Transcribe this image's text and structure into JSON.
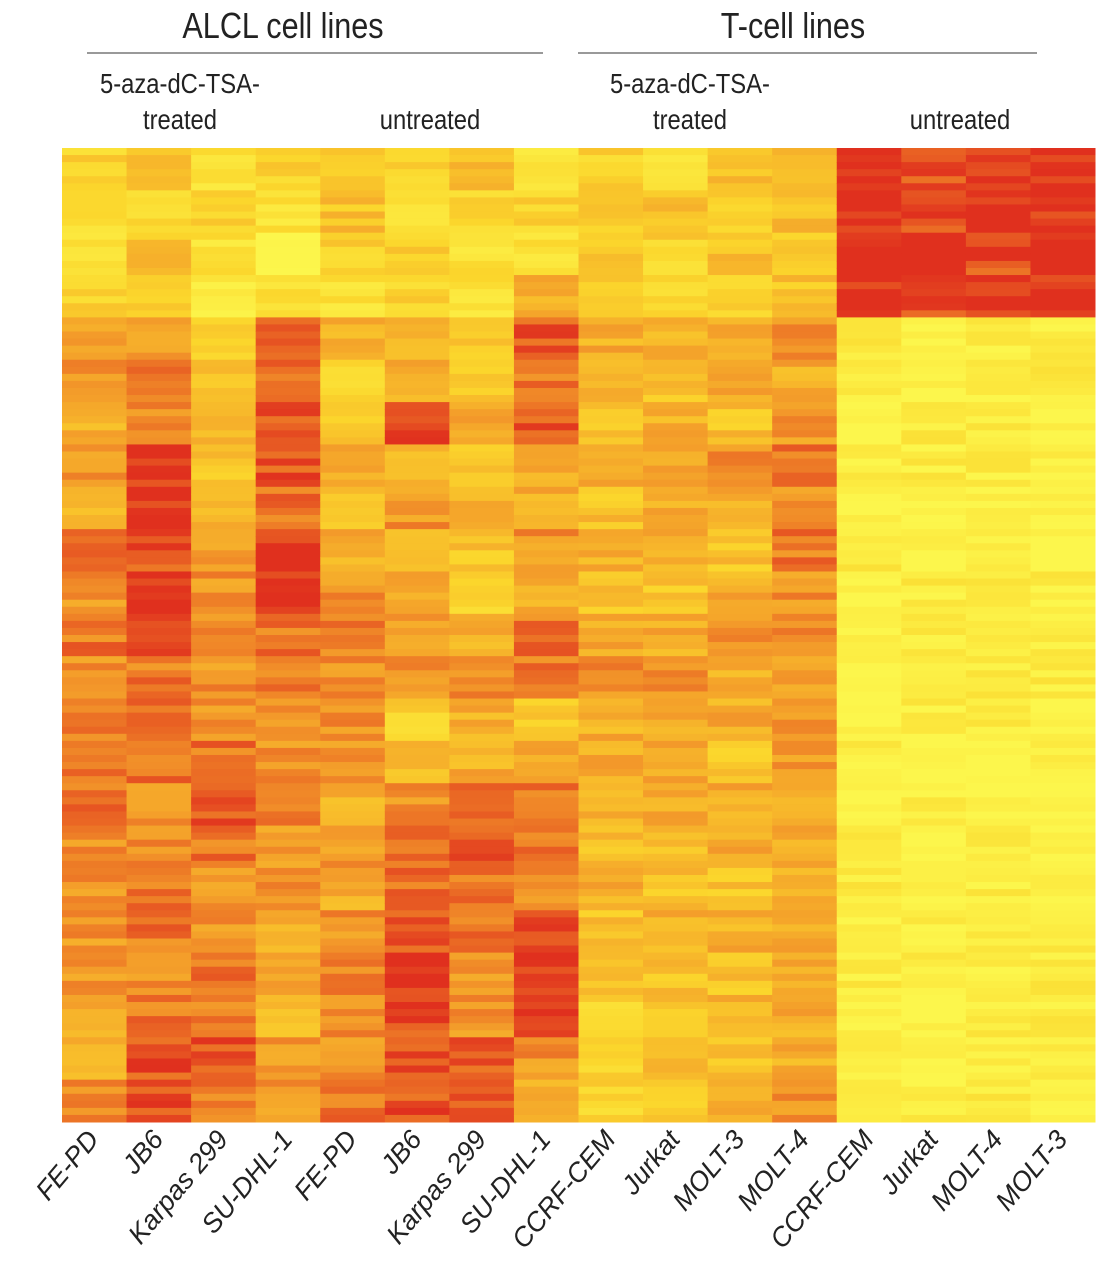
{
  "chart_data": {
    "type": "heatmap",
    "title": "",
    "groups": [
      {
        "label": "ALCL cell lines",
        "subgroups": [
          {
            "label_line1": "5-aza-dC-TSA-",
            "label_line2": "treated",
            "span": [
              0,
              3
            ]
          },
          {
            "label_line1": "",
            "label_line2": "untreated",
            "span": [
              4,
              7
            ]
          }
        ]
      },
      {
        "label": "T-cell lines",
        "subgroups": [
          {
            "label_line1": "5-aza-dC-TSA-",
            "label_line2": "treated",
            "span": [
              8,
              11
            ]
          },
          {
            "label_line1": "",
            "label_line2": "untreated",
            "span": [
              12,
              15
            ]
          }
        ]
      }
    ],
    "columns": [
      "FE-PD",
      "JB6",
      "Karpas 299",
      "SU-DHL-1",
      "FE-PD",
      "JB6",
      "Karpas 299",
      "SU-DHL-1",
      "CCRF-CEM",
      "Jurkat",
      "MOLT-3",
      "MOLT-4",
      "CCRF-CEM",
      "Jurkat",
      "MOLT-4",
      "MOLT-3"
    ],
    "value_scale": [
      0,
      9
    ],
    "color_scale": {
      "low": "#fcf64c",
      "mid_low": "#fbd62c",
      "mid_high": "#f39a2a",
      "high": "#e0301e"
    },
    "values": [
      [
        3,
        4,
        2,
        3,
        3,
        3,
        4,
        2,
        3,
        2,
        4,
        4,
        9,
        8,
        9,
        9
      ],
      [
        2,
        3,
        3,
        2,
        4,
        2,
        3,
        3,
        3,
        4,
        3,
        4,
        9,
        8,
        9,
        9
      ],
      [
        2,
        4,
        2,
        1,
        3,
        3,
        2,
        2,
        4,
        3,
        4,
        3,
        9,
        9,
        8,
        9
      ],
      [
        3,
        3,
        1,
        2,
        2,
        3,
        2,
        5,
        3,
        3,
        3,
        4,
        9,
        8,
        9,
        9
      ],
      [
        6,
        6,
        3,
        7,
        5,
        5,
        4,
        8,
        5,
        5,
        5,
        6,
        1,
        0,
        1,
        1
      ],
      [
        6,
        7,
        4,
        7,
        3,
        5,
        4,
        7,
        5,
        4,
        5,
        5,
        1,
        0,
        1,
        1
      ],
      [
        5,
        6,
        5,
        8,
        4,
        8,
        5,
        8,
        4,
        5,
        4,
        6,
        0,
        1,
        1,
        0
      ],
      [
        6,
        9,
        4,
        8,
        5,
        5,
        4,
        5,
        5,
        5,
        6,
        7,
        1,
        1,
        1,
        1
      ],
      [
        5,
        9,
        5,
        7,
        4,
        6,
        5,
        5,
        4,
        5,
        5,
        6,
        0,
        0,
        1,
        1
      ],
      [
        7,
        8,
        6,
        9,
        5,
        4,
        4,
        6,
        5,
        5,
        4,
        7,
        1,
        0,
        1,
        0
      ],
      [
        6,
        9,
        6,
        9,
        6,
        5,
        3,
        5,
        4,
        4,
        5,
        6,
        0,
        1,
        1,
        1
      ],
      [
        7,
        8,
        6,
        7,
        7,
        6,
        5,
        7,
        5,
        5,
        6,
        6,
        1,
        1,
        1,
        1
      ],
      [
        6,
        7,
        6,
        7,
        6,
        6,
        6,
        7,
        6,
        6,
        5,
        6,
        0,
        1,
        1,
        1
      ],
      [
        7,
        7,
        6,
        6,
        6,
        3,
        5,
        4,
        5,
        5,
        5,
        6,
        0,
        1,
        1,
        0
      ],
      [
        7,
        7,
        7,
        6,
        6,
        4,
        5,
        5,
        5,
        5,
        4,
        6,
        1,
        0,
        0,
        1
      ],
      [
        7,
        6,
        8,
        7,
        5,
        6,
        7,
        7,
        5,
        5,
        5,
        5,
        0,
        1,
        0,
        0
      ],
      [
        6,
        6,
        7,
        6,
        6,
        7,
        8,
        7,
        4,
        4,
        5,
        5,
        1,
        0,
        1,
        0
      ],
      [
        6,
        7,
        6,
        6,
        5,
        7,
        7,
        6,
        5,
        4,
        4,
        5,
        1,
        0,
        1,
        0
      ],
      [
        6,
        7,
        6,
        5,
        6,
        8,
        7,
        8,
        4,
        5,
        5,
        5,
        1,
        1,
        1,
        1
      ],
      [
        6,
        6,
        7,
        5,
        7,
        9,
        6,
        8,
        4,
        4,
        4,
        5,
        1,
        1,
        1,
        1
      ],
      [
        5,
        7,
        7,
        4,
        6,
        8,
        6,
        8,
        3,
        4,
        5,
        5,
        1,
        0,
        1,
        1
      ],
      [
        5,
        8,
        8,
        6,
        6,
        8,
        8,
        6,
        3,
        4,
        4,
        5,
        1,
        0,
        1,
        1
      ],
      [
        6,
        8,
        7,
        6,
        7,
        8,
        8,
        5,
        3,
        4,
        5,
        6,
        1,
        1,
        1,
        1
      ]
    ],
    "legend": "none"
  }
}
